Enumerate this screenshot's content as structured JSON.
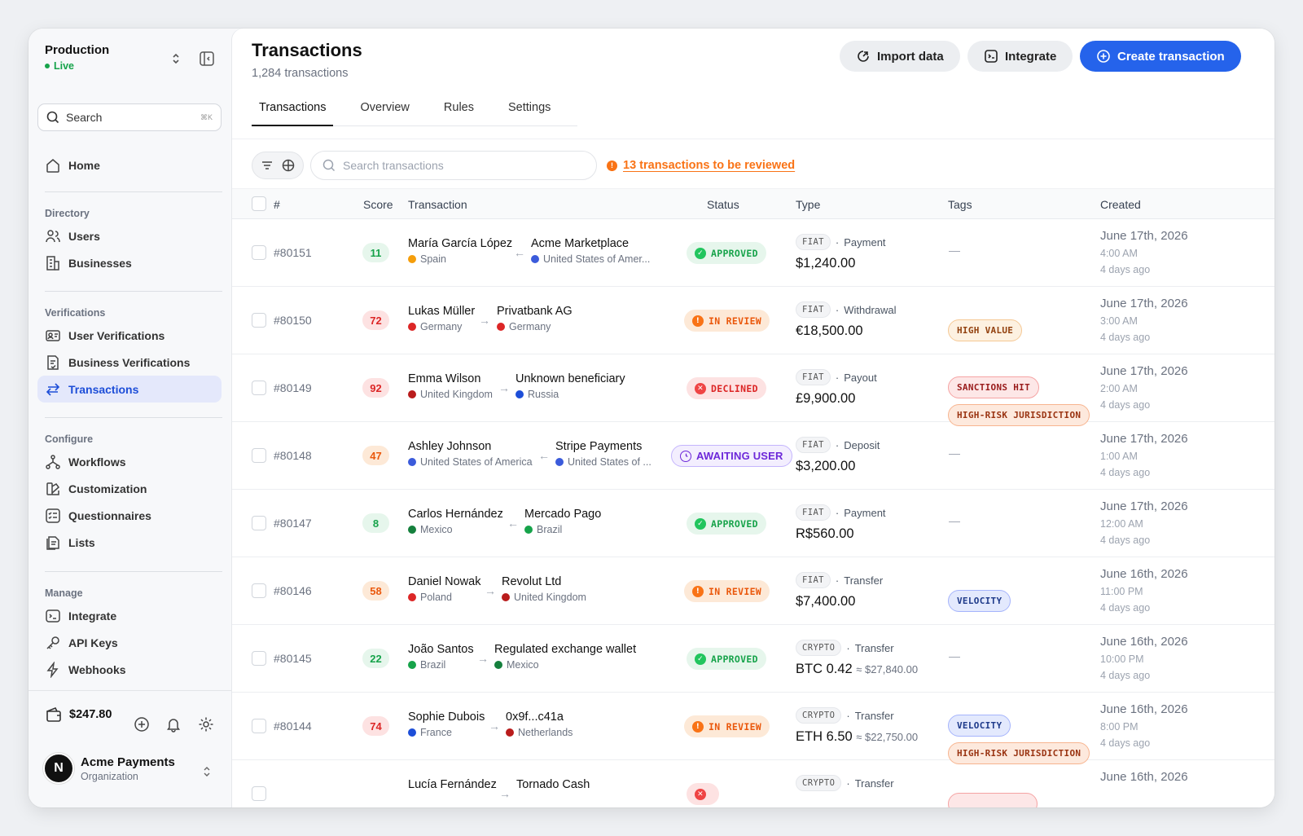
{
  "sidebar": {
    "env_name": "Production",
    "env_status": "Live",
    "search_placeholder": "Search",
    "search_shortcut": "⌘K",
    "home": "Home",
    "sections": {
      "directory": "Directory",
      "verifications": "Verifications",
      "configure": "Configure",
      "manage": "Manage"
    },
    "items": {
      "users": "Users",
      "businesses": "Businesses",
      "user_verifications": "User Verifications",
      "business_verifications": "Business Verifications",
      "transactions": "Transactions",
      "workflows": "Workflows",
      "customization": "Customization",
      "questionnaires": "Questionnaires",
      "lists": "Lists",
      "integrate": "Integrate",
      "api_keys": "API Keys",
      "webhooks": "Webhooks"
    },
    "wallet_balance": "$247.80",
    "org_initial": "N",
    "org_name": "Acme Payments",
    "org_type": "Organization"
  },
  "header": {
    "title": "Transactions",
    "subtitle": "1,284 transactions",
    "import_label": "Import data",
    "integrate_label": "Integrate",
    "create_label": "Create transaction"
  },
  "tabs": [
    "Transactions",
    "Overview",
    "Rules",
    "Settings"
  ],
  "toolbar": {
    "search_placeholder": "Search transactions",
    "review_text": "13 transactions to be reviewed"
  },
  "columns": {
    "id": "#",
    "score": "Score",
    "transaction": "Transaction",
    "status": "Status",
    "type": "Type",
    "tags": "Tags",
    "created": "Created"
  },
  "rows": [
    {
      "id": "#80151",
      "score": "11",
      "score_level": "low",
      "from_name": "María García López",
      "from_country": "Spain",
      "from_flag": "#f59e0b",
      "direction": "←",
      "to_name": "Acme Marketplace",
      "to_country": "United States of Amer...",
      "to_flag": "#3b5bdb",
      "status": "APPROVED",
      "status_kind": "approved",
      "type_pill": "FIAT",
      "type_label": "Payment",
      "amount": "$1,240.00",
      "amount_approx": "",
      "tags": [],
      "date": "June 17th, 2026",
      "time": "4:00 AM",
      "ago": "4 days ago"
    },
    {
      "id": "#80150",
      "score": "72",
      "score_level": "high",
      "from_name": "Lukas Müller",
      "from_country": "Germany",
      "from_flag": "#dc2626",
      "direction": "→",
      "to_name": "Privatbank AG",
      "to_country": "Germany",
      "to_flag": "#dc2626",
      "status": "IN REVIEW",
      "status_kind": "review",
      "type_pill": "FIAT",
      "type_label": "Withdrawal",
      "amount": "€18,500.00",
      "amount_approx": "",
      "tags": [
        {
          "label": "HIGH VALUE",
          "kind": "amber"
        }
      ],
      "date": "June 17th, 2026",
      "time": "3:00 AM",
      "ago": "4 days ago"
    },
    {
      "id": "#80149",
      "score": "92",
      "score_level": "high",
      "from_name": "Emma Wilson",
      "from_country": "United Kingdom",
      "from_flag": "#b91c1c",
      "direction": "→",
      "to_name": "Unknown beneficiary",
      "to_country": "Russia",
      "to_flag": "#1d4ed8",
      "status": "DECLINED",
      "status_kind": "declined",
      "type_pill": "FIAT",
      "type_label": "Payout",
      "amount": "£9,900.00",
      "amount_approx": "",
      "tags": [
        {
          "label": "SANCTIONS HIT",
          "kind": "red"
        },
        {
          "label": "HIGH-RISK JURISDICTION",
          "kind": "orange"
        }
      ],
      "date": "June 17th, 2026",
      "time": "2:00 AM",
      "ago": "4 days ago"
    },
    {
      "id": "#80148",
      "score": "47",
      "score_level": "mid",
      "from_name": "Ashley Johnson",
      "from_country": "United States of America",
      "from_flag": "#3b5bdb",
      "direction": "←",
      "to_name": "Stripe Payments",
      "to_country": "United States of ...",
      "to_flag": "#3b5bdb",
      "status": "AWAITING USER",
      "status_kind": "awaiting",
      "type_pill": "FIAT",
      "type_label": "Deposit",
      "amount": "$3,200.00",
      "amount_approx": "",
      "tags": [],
      "date": "June 17th, 2026",
      "time": "1:00 AM",
      "ago": "4 days ago"
    },
    {
      "id": "#80147",
      "score": "8",
      "score_level": "low",
      "from_name": "Carlos Hernández",
      "from_country": "Mexico",
      "from_flag": "#15803d",
      "direction": "←",
      "to_name": "Mercado Pago",
      "to_country": "Brazil",
      "to_flag": "#16a34a",
      "status": "APPROVED",
      "status_kind": "approved",
      "type_pill": "FIAT",
      "type_label": "Payment",
      "amount": "R$560.00",
      "amount_approx": "",
      "tags": [],
      "date": "June 17th, 2026",
      "time": "12:00 AM",
      "ago": "4 days ago"
    },
    {
      "id": "#80146",
      "score": "58",
      "score_level": "mid",
      "from_name": "Daniel Nowak",
      "from_country": "Poland",
      "from_flag": "#dc2626",
      "direction": "→",
      "to_name": "Revolut Ltd",
      "to_country": "United Kingdom",
      "to_flag": "#b91c1c",
      "status": "IN REVIEW",
      "status_kind": "review",
      "type_pill": "FIAT",
      "type_label": "Transfer",
      "amount": "$7,400.00",
      "amount_approx": "",
      "tags": [
        {
          "label": "VELOCITY",
          "kind": "blue"
        }
      ],
      "date": "June 16th, 2026",
      "time": "11:00 PM",
      "ago": "4 days ago"
    },
    {
      "id": "#80145",
      "score": "22",
      "score_level": "low",
      "from_name": "João Santos",
      "from_country": "Brazil",
      "from_flag": "#16a34a",
      "direction": "→",
      "to_name": "Regulated exchange wallet",
      "to_country": "Mexico",
      "to_flag": "#15803d",
      "status": "APPROVED",
      "status_kind": "approved",
      "type_pill": "CRYPTO",
      "type_label": "Transfer",
      "amount": "BTC 0.42",
      "amount_approx": "≈ $27,840.00",
      "tags": [],
      "date": "June 16th, 2026",
      "time": "10:00 PM",
      "ago": "4 days ago"
    },
    {
      "id": "#80144",
      "score": "74",
      "score_level": "high",
      "from_name": "Sophie Dubois",
      "from_country": "France",
      "from_flag": "#1d4ed8",
      "direction": "→",
      "to_name": "0x9f...c41a",
      "to_country": "Netherlands",
      "to_flag": "#b91c1c",
      "status": "IN REVIEW",
      "status_kind": "review",
      "type_pill": "CRYPTO",
      "type_label": "Transfer",
      "amount": "ETH 6.50",
      "amount_approx": "≈ $22,750.00",
      "tags": [
        {
          "label": "VELOCITY",
          "kind": "blue"
        },
        {
          "label": "HIGH-RISK JURISDICTION",
          "kind": "orange"
        }
      ],
      "date": "June 16th, 2026",
      "time": "8:00 PM",
      "ago": "4 days ago"
    },
    {
      "id": "",
      "score": "",
      "score_level": "high",
      "from_name": "Lucía Fernández",
      "from_country": "",
      "from_flag": "#f59e0b",
      "direction": "→",
      "to_name": "Tornado Cash",
      "to_country": "",
      "to_flag": "#999999",
      "status": "",
      "status_kind": "declined",
      "type_pill": "CRYPTO",
      "type_label": "Transfer",
      "amount": "",
      "amount_approx": "",
      "tags": [
        {
          "label": "",
          "kind": "red"
        }
      ],
      "date": "June 16th, 2026",
      "time": "",
      "ago": ""
    }
  ]
}
